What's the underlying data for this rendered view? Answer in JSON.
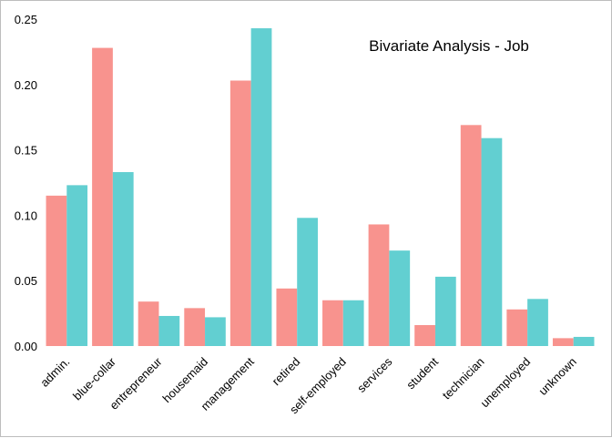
{
  "chart_data": {
    "type": "bar",
    "title": "Bivariate Analysis - Job",
    "xlabel": "",
    "ylabel": "",
    "ylim": [
      0,
      0.25
    ],
    "yticks": [
      "0.00",
      "0.05",
      "0.10",
      "0.15",
      "0.20",
      "0.25"
    ],
    "grid": false,
    "legend": "none",
    "categories": [
      "admin.",
      "blue-collar",
      "entrepreneur",
      "housemaid",
      "management",
      "retired",
      "self-employed",
      "services",
      "student",
      "technician",
      "unemployed",
      "unknown"
    ],
    "series": [
      {
        "color": "#F8938E",
        "values": [
          0.115,
          0.228,
          0.034,
          0.029,
          0.203,
          0.044,
          0.035,
          0.093,
          0.016,
          0.169,
          0.028,
          0.006
        ]
      },
      {
        "color": "#62CFD1",
        "values": [
          0.123,
          0.133,
          0.023,
          0.022,
          0.243,
          0.098,
          0.035,
          0.073,
          0.053,
          0.159,
          0.036,
          0.007
        ]
      }
    ]
  }
}
